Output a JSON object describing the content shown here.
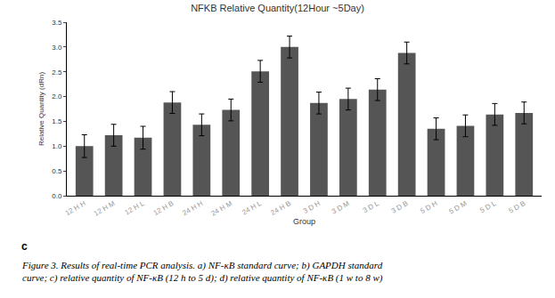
{
  "chart_data": {
    "type": "bar",
    "title": "NFKB Relative Quantity(12Hour ~5Day)",
    "x_label": "Group",
    "y_label": "Relative Quantity (dRn)",
    "categories": [
      "12 H H",
      "12 H M",
      "12 H L",
      "12 H B",
      "24 H H",
      "24 H M",
      "24 H L",
      "24 H B",
      "3 D H",
      "3 D M",
      "3 D L",
      "3 D B",
      "5 D H",
      "5 D M",
      "5 D L",
      "5 D B"
    ],
    "values": [
      1.0,
      1.22,
      1.17,
      1.88,
      1.43,
      1.73,
      2.51,
      3.0,
      1.87,
      1.95,
      2.14,
      2.88,
      1.35,
      1.41,
      1.64,
      1.67
    ],
    "error": [
      0.23,
      0.22,
      0.23,
      0.22,
      0.22,
      0.22,
      0.22,
      0.22,
      0.22,
      0.22,
      0.22,
      0.22,
      0.22,
      0.22,
      0.22,
      0.22
    ],
    "color": "#555555",
    "ylim": [
      0,
      3.5
    ],
    "yticks": [
      {
        "value": 0,
        "label": "0.0"
      },
      {
        "value": 0.5,
        "label": "0.5"
      },
      {
        "value": 1,
        "label": "1.0"
      },
      {
        "value": 1.5,
        "label": "1.5"
      },
      {
        "value": 2,
        "label": "2.0"
      },
      {
        "value": 2.5,
        "label": "2.5"
      },
      {
        "value": 3,
        "label": "3.0"
      },
      {
        "value": 3.5,
        "label": "3.5"
      }
    ],
    "grid": false,
    "panel_label": "c",
    "caption": [
      "Figure 3. Results of real-time PCR analysis. a) NF-κB standard curve; b) GAPDH standard",
      "curve; c) relative quantity of NF-κB (12 h to 5 d); d) relative quantity of NF-κB (1 w to 8 w)"
    ]
  }
}
